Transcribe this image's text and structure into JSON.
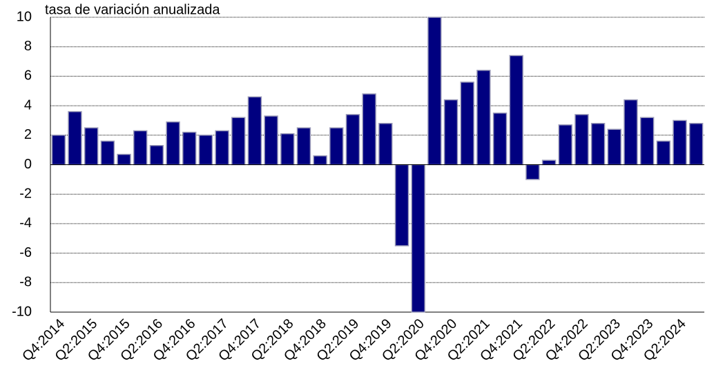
{
  "chart_data": {
    "type": "bar",
    "title": "tasa de variación anualizada",
    "categories": [
      "Q4:2014",
      null,
      "Q2:2015",
      null,
      "Q4:2015",
      null,
      "Q2:2016",
      null,
      "Q4:2016",
      null,
      "Q2:2017",
      null,
      "Q4:2017",
      null,
      "Q2:2018",
      null,
      "Q4:2018",
      null,
      "Q2:2019",
      null,
      "Q4:2019",
      null,
      "Q2:2020",
      null,
      "Q4:2020",
      null,
      "Q2:2021",
      null,
      "Q4:2021",
      null,
      "Q2:2022",
      null,
      "Q4:2022",
      null,
      "Q2:2023",
      null,
      "Q4:2023",
      null,
      "Q2:2024",
      null
    ],
    "values": [
      2.0,
      3.6,
      2.5,
      1.6,
      0.7,
      2.3,
      1.3,
      2.9,
      2.2,
      2.0,
      2.3,
      3.2,
      4.6,
      3.3,
      2.1,
      2.5,
      0.6,
      2.5,
      3.4,
      4.8,
      2.8,
      -5.5,
      -10,
      10,
      4.4,
      5.6,
      6.4,
      3.5,
      7.4,
      -1.0,
      0.3,
      2.7,
      3.4,
      2.8,
      2.4,
      4.4,
      3.2,
      1.6,
      3.0,
      2.8
    ],
    "color": "#000080",
    "ylim": [
      -10,
      10
    ],
    "yticks": [
      -10,
      -8,
      -6,
      -4,
      -2,
      0,
      2,
      4,
      6,
      8,
      10
    ],
    "grid": true
  }
}
